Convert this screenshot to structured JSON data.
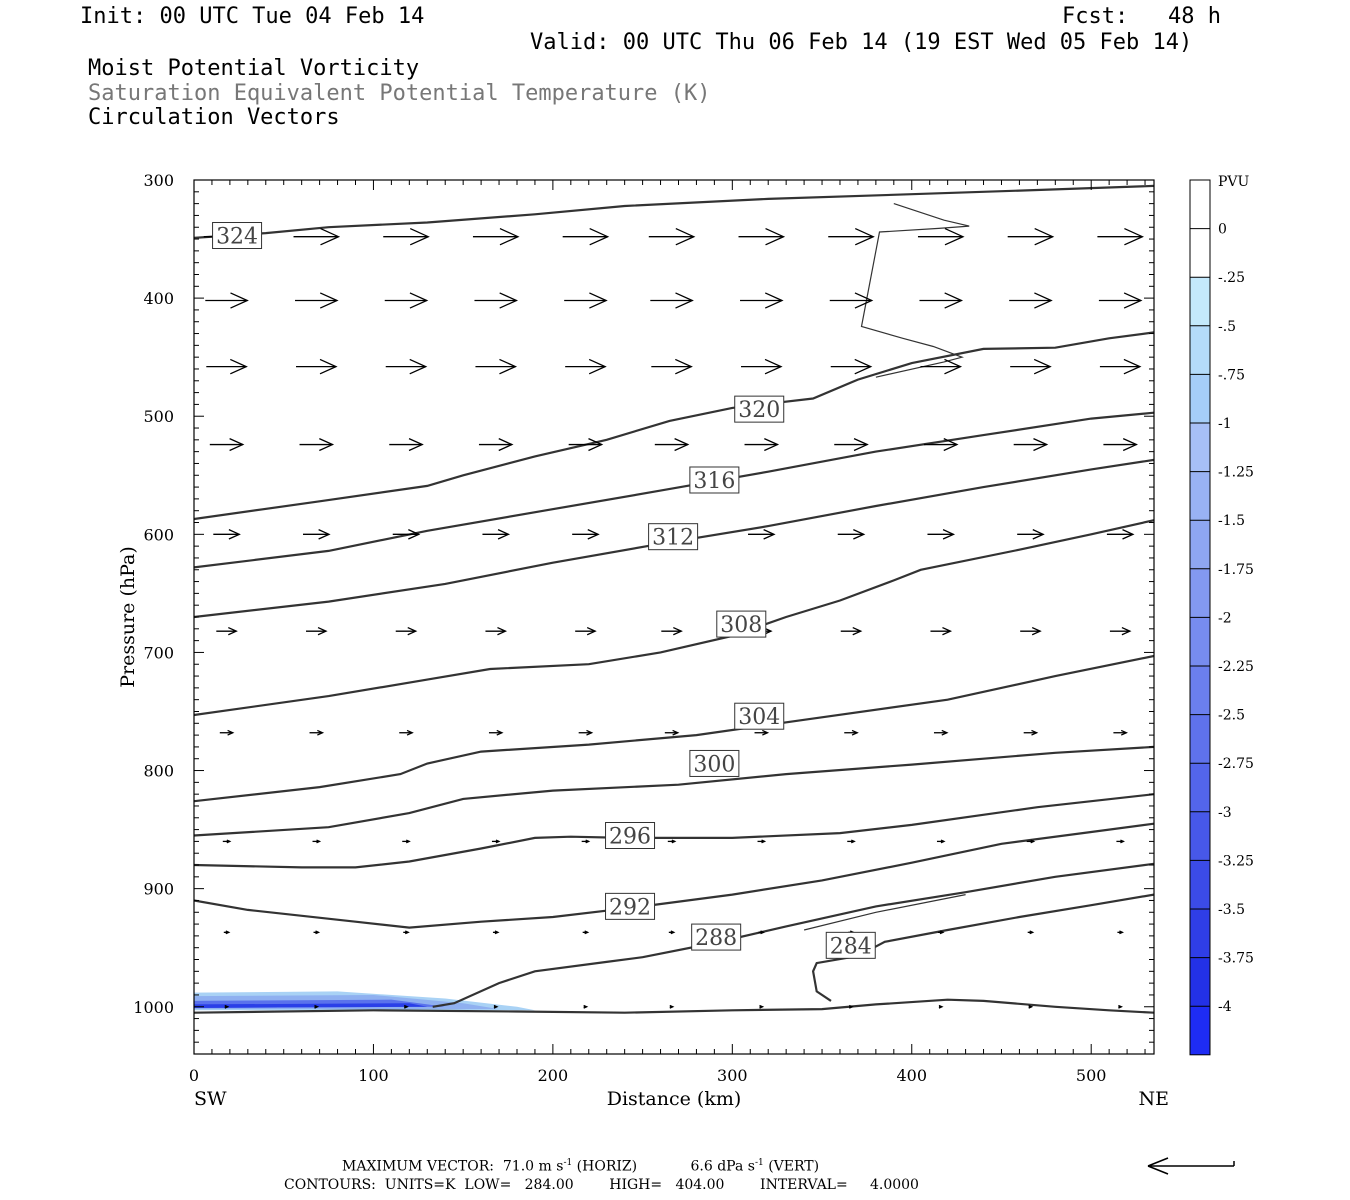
{
  "header": {
    "init": "Init: 00 UTC Tue 04 Feb 14",
    "fcst": "Fcst:   48 h",
    "valid": "Valid: 00 UTC Thu 06 Feb 14 (19 EST Wed 05 Feb 14)",
    "fields": [
      {
        "text": "Moist Potential Vorticity",
        "color": "#000000"
      },
      {
        "text": "Saturation Equivalent Potential Temperature (K)",
        "color": "#777777"
      },
      {
        "text": "Circulation Vectors",
        "color": "#000000"
      }
    ]
  },
  "chart_data": {
    "type": "cross-section",
    "xlabel": "Distance (km)",
    "ylabel": "Pressure (hPa)",
    "xlim": [
      0,
      535
    ],
    "ylim": [
      1040,
      300
    ],
    "x_ticks": [
      "0",
      "100",
      "200",
      "300",
      "400",
      "500"
    ],
    "y_ticks": [
      "300",
      "400",
      "500",
      "600",
      "700",
      "800",
      "900",
      "1000"
    ],
    "endpoints": {
      "left": "SW",
      "right": "NE"
    },
    "contours": [
      {
        "label": "324",
        "label_at": [
          24,
          347
        ],
        "points": [
          [
            0,
            349
          ],
          [
            40,
            345
          ],
          [
            75,
            340
          ],
          [
            130,
            336
          ],
          [
            190,
            329
          ],
          [
            240,
            322
          ],
          [
            320,
            316
          ],
          [
            400,
            312
          ],
          [
            480,
            308
          ],
          [
            535,
            305
          ]
        ]
      },
      {
        "label": "320",
        "label_at": [
          315,
          494
        ],
        "points": [
          [
            0,
            587
          ],
          [
            70,
            572
          ],
          [
            130,
            559
          ],
          [
            150,
            550
          ],
          [
            190,
            534
          ],
          [
            230,
            520
          ],
          [
            265,
            504
          ],
          [
            300,
            493
          ],
          [
            345,
            485
          ],
          [
            370,
            469
          ],
          [
            400,
            455
          ],
          [
            440,
            443
          ],
          [
            480,
            442
          ],
          [
            510,
            434
          ],
          [
            535,
            429
          ]
        ]
      },
      {
        "label": "316",
        "label_at": [
          290,
          554
        ],
        "points": [
          [
            0,
            628
          ],
          [
            75,
            614
          ],
          [
            130,
            597
          ],
          [
            195,
            580
          ],
          [
            260,
            563
          ],
          [
            320,
            547
          ],
          [
            380,
            530
          ],
          [
            440,
            516
          ],
          [
            500,
            502
          ],
          [
            535,
            497
          ]
        ]
      },
      {
        "label": "312",
        "label_at": [
          267,
          602
        ],
        "points": [
          [
            0,
            670
          ],
          [
            75,
            657
          ],
          [
            140,
            642
          ],
          [
            200,
            624
          ],
          [
            260,
            608
          ],
          [
            320,
            593
          ],
          [
            380,
            576
          ],
          [
            440,
            560
          ],
          [
            500,
            545
          ],
          [
            535,
            537
          ]
        ]
      },
      {
        "label": "308",
        "label_at": [
          305,
          676
        ],
        "points": [
          [
            0,
            753
          ],
          [
            75,
            737
          ],
          [
            130,
            723
          ],
          [
            165,
            714
          ],
          [
            220,
            710
          ],
          [
            260,
            700
          ],
          [
            300,
            686
          ],
          [
            330,
            670
          ],
          [
            360,
            656
          ],
          [
            390,
            639
          ],
          [
            405,
            630
          ],
          [
            460,
            613
          ],
          [
            500,
            600
          ],
          [
            535,
            588
          ]
        ]
      },
      {
        "label": "304",
        "label_at": [
          315,
          754
        ],
        "points": [
          [
            0,
            826
          ],
          [
            70,
            814
          ],
          [
            115,
            803
          ],
          [
            130,
            794
          ],
          [
            160,
            784
          ],
          [
            220,
            778
          ],
          [
            280,
            770
          ],
          [
            340,
            757
          ],
          [
            420,
            740
          ],
          [
            480,
            720
          ],
          [
            535,
            703
          ]
        ]
      },
      {
        "label": "300",
        "label_at": [
          290,
          794
        ],
        "points": [
          [
            0,
            855
          ],
          [
            75,
            848
          ],
          [
            120,
            836
          ],
          [
            150,
            824
          ],
          [
            200,
            817
          ],
          [
            270,
            812
          ],
          [
            330,
            803
          ],
          [
            400,
            795
          ],
          [
            480,
            785
          ],
          [
            535,
            780
          ]
        ]
      },
      {
        "label": "296",
        "label_at": [
          243,
          855
        ],
        "points": [
          [
            0,
            880
          ],
          [
            60,
            882
          ],
          [
            90,
            882
          ],
          [
            120,
            877
          ],
          [
            160,
            866
          ],
          [
            190,
            857
          ],
          [
            210,
            856
          ],
          [
            240,
            857
          ],
          [
            300,
            857
          ],
          [
            360,
            853
          ],
          [
            400,
            846
          ],
          [
            470,
            831
          ],
          [
            535,
            820
          ]
        ]
      },
      {
        "label": "292",
        "label_at": [
          243,
          915
        ],
        "points": [
          [
            0,
            910
          ],
          [
            30,
            918
          ],
          [
            90,
            928
          ],
          [
            120,
            933
          ],
          [
            160,
            928
          ],
          [
            200,
            924
          ],
          [
            250,
            915
          ],
          [
            300,
            905
          ],
          [
            350,
            893
          ],
          [
            400,
            878
          ],
          [
            450,
            862
          ],
          [
            500,
            852
          ],
          [
            535,
            845
          ]
        ]
      },
      {
        "label": "288",
        "label_at": [
          291,
          941
        ],
        "points": [
          [
            133,
            1000
          ],
          [
            145,
            997
          ],
          [
            170,
            980
          ],
          [
            190,
            970
          ],
          [
            230,
            962
          ],
          [
            250,
            958
          ],
          [
            290,
            946
          ],
          [
            330,
            932
          ],
          [
            380,
            915
          ],
          [
            430,
            903
          ],
          [
            480,
            890
          ],
          [
            535,
            879
          ]
        ]
      },
      {
        "label": "284",
        "label_at": [
          366,
          948
        ],
        "points": [
          [
            355,
            995
          ],
          [
            347,
            987
          ],
          [
            345,
            970
          ],
          [
            347,
            963
          ],
          [
            370,
            957
          ],
          [
            385,
            945
          ],
          [
            420,
            935
          ],
          [
            460,
            924
          ],
          [
            500,
            914
          ],
          [
            535,
            905
          ]
        ]
      },
      {
        "label": "",
        "label_at": null,
        "points": [
          [
            0,
            1005
          ],
          [
            100,
            1003
          ],
          [
            180,
            1004
          ],
          [
            240,
            1005
          ],
          [
            300,
            1003
          ],
          [
            350,
            1002
          ],
          [
            380,
            998
          ],
          [
            420,
            994
          ],
          [
            440,
            995
          ],
          [
            480,
            1000
          ],
          [
            510,
            1003
          ],
          [
            535,
            1005
          ]
        ]
      }
    ],
    "thin_contours": [
      [
        [
          390,
          320
        ],
        [
          418,
          334
        ],
        [
          432,
          339
        ],
        [
          415,
          341
        ],
        [
          382,
          344
        ],
        [
          372,
          424
        ],
        [
          395,
          434
        ],
        [
          412,
          441
        ],
        [
          428,
          450
        ],
        [
          418,
          454
        ],
        [
          380,
          467
        ]
      ],
      [
        [
          340,
          935
        ],
        [
          380,
          920
        ],
        [
          430,
          905
        ]
      ]
    ],
    "vectors": [
      {
        "p": 348,
        "xs": [
          18,
          68,
          118,
          168,
          218,
          266,
          316,
          366,
          416,
          466,
          516
        ],
        "len": 45
      },
      {
        "p": 402,
        "xs": [
          18,
          68,
          118,
          168,
          218,
          266,
          316,
          366,
          416,
          466,
          516
        ],
        "len": 42
      },
      {
        "p": 458,
        "xs": [
          18,
          68,
          118,
          168,
          218,
          266,
          316,
          366,
          416,
          466,
          516
        ],
        "len": 40
      },
      {
        "p": 524,
        "xs": [
          18,
          68,
          118,
          168,
          218,
          266,
          316,
          366,
          416,
          466,
          516
        ],
        "len": 33
      },
      {
        "p": 600,
        "xs": [
          18,
          68,
          118,
          168,
          218,
          266,
          316,
          366,
          416,
          466,
          516
        ],
        "len": 26
      },
      {
        "p": 682,
        "xs": [
          18,
          68,
          118,
          168,
          218,
          266,
          316,
          366,
          416,
          466,
          516
        ],
        "len": 20
      },
      {
        "p": 768,
        "xs": [
          18,
          68,
          118,
          168,
          218,
          266,
          316,
          366,
          416,
          466,
          516
        ],
        "len": 13
      },
      {
        "p": 860,
        "xs": [
          18,
          68,
          118,
          168,
          218,
          266,
          316,
          366,
          416,
          466,
          516
        ],
        "len": 7
      },
      {
        "p": 937,
        "xs": [
          18,
          68,
          118,
          168,
          218,
          266,
          316,
          366,
          416,
          466,
          516
        ],
        "len": 5
      },
      {
        "p": 1000,
        "xs": [
          18,
          68,
          118,
          168,
          218,
          266,
          316,
          366,
          416,
          466,
          516
        ],
        "len": 3
      }
    ],
    "pv_shading": [
      {
        "pv": -0.5,
        "color": "#a9d2f5",
        "points": [
          [
            0,
            988
          ],
          [
            80,
            987
          ],
          [
            140,
            993
          ],
          [
            180,
            1000
          ],
          [
            190,
            1003
          ],
          [
            0,
            1003
          ]
        ]
      },
      {
        "pv": -1.25,
        "color": "#8fb0f0",
        "points": [
          [
            0,
            991
          ],
          [
            100,
            990
          ],
          [
            150,
            997
          ],
          [
            170,
            1002
          ],
          [
            0,
            1002
          ]
        ]
      },
      {
        "pv": -2.5,
        "color": "#5a72ec",
        "points": [
          [
            0,
            995
          ],
          [
            110,
            994
          ],
          [
            140,
            1000
          ],
          [
            0,
            1001
          ]
        ]
      },
      {
        "pv": -3.5,
        "color": "#2a3fe8",
        "points": [
          [
            0,
            998
          ],
          [
            120,
            997
          ],
          [
            130,
            1000
          ],
          [
            0,
            1001
          ]
        ]
      }
    ],
    "colorbar": {
      "unit": "PVU",
      "levels": [
        "0",
        "-.25",
        "-.5",
        "-.75",
        "-1",
        "-1.25",
        "-1.5",
        "-1.75",
        "-2",
        "-2.25",
        "-2.5",
        "-2.75",
        "-3",
        "-3.25",
        "-3.5",
        "-3.75",
        "-4"
      ],
      "colors": [
        "#ffffff",
        "#ffffff",
        "#c4e9fc",
        "#b4dbfa",
        "#a5cdf8",
        "#a7bff6",
        "#99b2f4",
        "#8ea6f2",
        "#8399f1",
        "#778cef",
        "#6b7fee",
        "#5f72ec",
        "#5365eb",
        "#4758e9",
        "#3b4be8",
        "#2f3ee7",
        "#2331e6",
        "#1e2cf4"
      ]
    }
  },
  "footer": {
    "max_vector_label": "MAXIMUM VECTOR:",
    "max_vector_horiz": "71.0 m s",
    "horiz_exp": "-1",
    "horiz_tag": "(HORIZ)",
    "max_vector_vert": "6.6 dPa s",
    "vert_exp": "-1",
    "vert_tag": "(VERT)",
    "contours_line": "CONTOURS:  UNITS=K  LOW=   284.00        HIGH=   404.00        INTERVAL=     4.0000"
  }
}
